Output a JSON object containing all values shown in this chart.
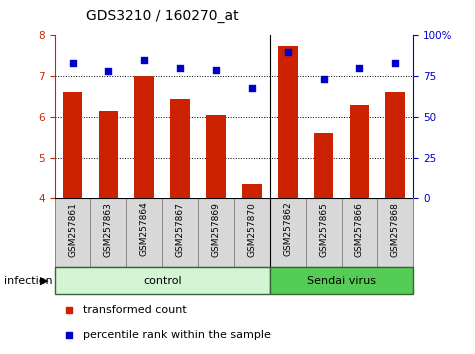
{
  "title": "GDS3210 / 160270_at",
  "samples": [
    "GSM257861",
    "GSM257863",
    "GSM257864",
    "GSM257867",
    "GSM257869",
    "GSM257870",
    "GSM257862",
    "GSM257865",
    "GSM257866",
    "GSM257868"
  ],
  "bar_values": [
    6.6,
    6.15,
    7.0,
    6.45,
    6.05,
    4.35,
    7.75,
    5.6,
    6.3,
    6.6
  ],
  "dot_values": [
    83,
    78,
    85,
    80,
    79,
    68,
    90,
    73,
    80,
    83
  ],
  "groups": [
    {
      "label": "control",
      "start": 0,
      "end": 6,
      "color": "#d4f5d4"
    },
    {
      "label": "Sendai virus",
      "start": 6,
      "end": 10,
      "color": "#55cc55"
    }
  ],
  "factor_label": "infection",
  "ylim_left": [
    4,
    8
  ],
  "ylim_right": [
    0,
    100
  ],
  "yticks_left": [
    4,
    5,
    6,
    7,
    8
  ],
  "yticks_right": [
    0,
    25,
    50,
    75,
    100
  ],
  "bar_color": "#cc2200",
  "dot_color": "#0000cc",
  "legend_items": [
    "transformed count",
    "percentile rank within the sample"
  ],
  "title_fontsize": 10,
  "tick_fontsize": 7.5,
  "label_fontsize": 8,
  "separator_index": 6
}
